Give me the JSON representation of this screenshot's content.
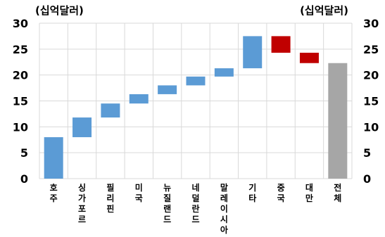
{
  "chart_data": {
    "type": "bar",
    "subtype": "waterfall",
    "unit_left": "(십억달러)",
    "unit_right": "(십억달러)",
    "ylim": [
      0,
      30
    ],
    "yticks": [
      0,
      5,
      10,
      15,
      20,
      25,
      30
    ],
    "grid": true,
    "categories": [
      "호주",
      "싱가포르",
      "필리핀",
      "미국",
      "뉴질랜드",
      "네덜란드",
      "말레이시아",
      "기타",
      "중국",
      "대만",
      "전체"
    ],
    "bars": [
      {
        "category": "호주",
        "start": 0.0,
        "end": 8.0,
        "kind": "increase"
      },
      {
        "category": "싱가포르",
        "start": 8.0,
        "end": 11.8,
        "kind": "increase"
      },
      {
        "category": "필리핀",
        "start": 11.8,
        "end": 14.5,
        "kind": "increase"
      },
      {
        "category": "미국",
        "start": 14.5,
        "end": 16.3,
        "kind": "increase"
      },
      {
        "category": "뉴질랜드",
        "start": 16.3,
        "end": 18.0,
        "kind": "increase"
      },
      {
        "category": "네덜란드",
        "start": 18.0,
        "end": 19.7,
        "kind": "increase"
      },
      {
        "category": "말레이시아",
        "start": 19.7,
        "end": 21.3,
        "kind": "increase"
      },
      {
        "category": "기타",
        "start": 21.3,
        "end": 27.5,
        "kind": "increase"
      },
      {
        "category": "중국",
        "start": 27.5,
        "end": 24.3,
        "kind": "decrease"
      },
      {
        "category": "대만",
        "start": 24.3,
        "end": 22.3,
        "kind": "decrease"
      },
      {
        "category": "전체",
        "start": 0.0,
        "end": 22.3,
        "kind": "total"
      }
    ],
    "colors": {
      "increase": "#5b9bd5",
      "decrease": "#c00000",
      "total": "#a6a6a6",
      "grid": "#d9d9d9"
    }
  }
}
